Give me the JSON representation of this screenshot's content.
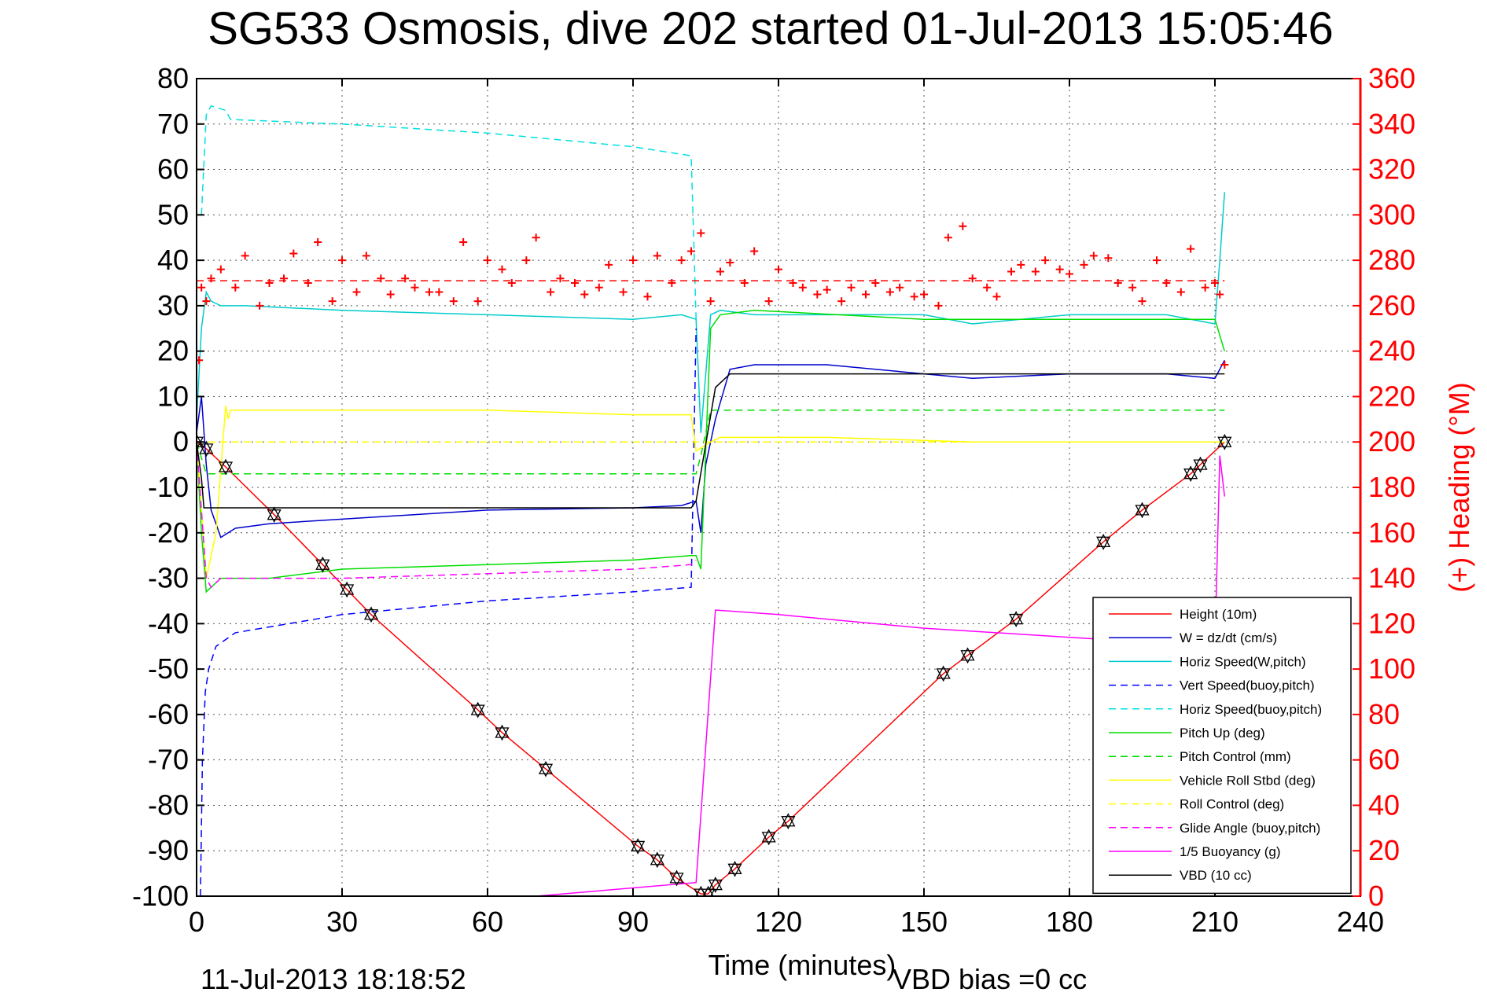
{
  "chart_data": {
    "type": "line",
    "title": "SG533 Osmosis, dive 202 started 01-Jul-2013 15:05:46",
    "xlabel": "Time (minutes)",
    "ylabel_right": "(+) Heading (°M)",
    "xlim": [
      0,
      240
    ],
    "ylim": [
      -100,
      80
    ],
    "ylim_right": [
      0,
      360
    ],
    "x_ticks": [
      "0",
      "30",
      "60",
      "90",
      "120",
      "150",
      "180",
      "210",
      "240"
    ],
    "y_ticks": [
      "80",
      "70",
      "60",
      "50",
      "40",
      "30",
      "20",
      "10",
      "0",
      "-10",
      "-20",
      "-30",
      "-40",
      "-50",
      "-60",
      "-70",
      "-80",
      "-90",
      "-100"
    ],
    "y_ticks_right": [
      "360",
      "340",
      "320",
      "300",
      "280",
      "260",
      "240",
      "220",
      "200",
      "180",
      "160",
      "140",
      "120",
      "100",
      "80",
      "60",
      "40",
      "20",
      "0"
    ],
    "grid": true,
    "legend_position": "bottom-right",
    "footer_left": "11-Jul-2013 18:18:52",
    "footer_right": "VBD bias =0 cc",
    "series": [
      {
        "name": "Height (10m)",
        "color": "#ff0000",
        "style": "solid",
        "axis": "left",
        "x": [
          0,
          2,
          6,
          16,
          26,
          31,
          36,
          58,
          63,
          72,
          91,
          95,
          99,
          104,
          105.5,
          107,
          111,
          118,
          122,
          154,
          159,
          169,
          187,
          195,
          205,
          207,
          212
        ],
        "y": [
          0,
          -1.5,
          -5.5,
          -16,
          -27,
          -32.5,
          -38,
          -59,
          -64,
          -72,
          -89,
          -92,
          -96,
          -99.5,
          -99.5,
          -97.5,
          -94,
          -87,
          -83.5,
          -51,
          -47,
          -39,
          -22,
          -15,
          -7,
          -5,
          0
        ]
      },
      {
        "name": "W = dz/dt (cm/s)",
        "color": "#0000cc",
        "style": "solid",
        "axis": "left",
        "x": [
          0,
          1,
          2,
          3,
          5,
          8,
          15,
          30,
          60,
          90,
          100,
          103,
          104,
          105,
          107,
          110,
          115,
          130,
          150,
          160,
          180,
          200,
          210,
          212
        ],
        "y": [
          2,
          10,
          -5,
          -15,
          -21,
          -19,
          -18,
          -17,
          -15,
          -14.5,
          -14,
          -13,
          -20,
          -5,
          5,
          16,
          17,
          17,
          15,
          14,
          15,
          15,
          14,
          18
        ]
      },
      {
        "name": "Horiz Speed(W,pitch)",
        "color": "#00cccc",
        "style": "solid",
        "axis": "left",
        "x": [
          0,
          1,
          2,
          3,
          5,
          10,
          30,
          60,
          90,
          100,
          103,
          104,
          106,
          108,
          115,
          130,
          150,
          160,
          180,
          200,
          210,
          211,
          212
        ],
        "y": [
          5,
          25,
          33,
          31,
          30,
          30,
          29,
          28,
          27,
          28,
          27,
          2,
          28,
          29,
          28,
          28,
          28,
          26,
          28,
          28,
          26,
          40,
          55
        ]
      },
      {
        "name": "Vert Speed(buoy,pitch)",
        "color": "#0000ff",
        "style": "dashed",
        "axis": "left",
        "x": [
          0.8,
          1.2,
          1.8,
          2.5,
          4,
          8,
          30,
          60,
          90,
          102,
          103
        ],
        "y": [
          -100,
          -70,
          -55,
          -50,
          -45,
          -42,
          -38,
          -35,
          -33,
          -32,
          25
        ]
      },
      {
        "name": "Horiz Speed(buoy,pitch)",
        "color": "#00e0e0",
        "style": "dashed",
        "axis": "left",
        "x": [
          1,
          2,
          3,
          6,
          7,
          30,
          60,
          90,
          102,
          103
        ],
        "y": [
          50,
          72,
          74,
          73,
          71,
          70,
          68,
          65,
          63,
          27
        ]
      },
      {
        "name": "Pitch Up (deg)",
        "color": "#00dd00",
        "style": "solid",
        "axis": "left",
        "x": [
          0,
          1,
          2,
          3,
          5,
          15,
          30,
          60,
          90,
          102,
          103,
          104,
          106,
          108,
          115,
          150,
          180,
          210,
          212
        ],
        "y": [
          0,
          -20,
          -33,
          -32,
          -30,
          -30,
          -28,
          -27,
          -26,
          -25,
          -25,
          -28,
          25,
          28,
          29,
          27,
          27,
          27,
          20
        ]
      },
      {
        "name": "Pitch Control (mm)",
        "color": "#00dd00",
        "style": "dashed",
        "axis": "left",
        "x": [
          0,
          2,
          3,
          103,
          104,
          106,
          212
        ],
        "y": [
          0,
          -7,
          -7,
          -7,
          -3,
          7,
          7
        ]
      },
      {
        "name": "Vehicle Roll Stbd (deg)",
        "color": "#ffff00",
        "style": "solid",
        "axis": "left",
        "x": [
          0,
          2,
          4,
          6,
          6.5,
          7,
          30,
          60,
          90,
          102,
          103,
          106,
          108,
          130,
          160,
          180,
          200,
          212
        ],
        "y": [
          0,
          -30,
          -20,
          8,
          5,
          7,
          7,
          7,
          6,
          6,
          -2,
          0,
          1,
          1,
          0,
          0,
          0,
          0
        ]
      },
      {
        "name": "Roll Control (deg)",
        "color": "#ffff00",
        "style": "dashed",
        "axis": "left",
        "x": [
          0,
          212
        ],
        "y": [
          0,
          0
        ]
      },
      {
        "name": "Glide Angle (buoy,pitch)",
        "color": "#ff00ff",
        "style": "dashed",
        "axis": "left",
        "x": [
          0,
          2,
          3,
          5,
          30,
          60,
          90,
          102,
          103
        ],
        "y": [
          0,
          -30,
          -32,
          -30,
          -30,
          -29,
          -28,
          -27,
          -26
        ]
      },
      {
        "name": "1/5 Buoyancy (g)",
        "color": "#ff00ff",
        "style": "solid",
        "axis": "left",
        "x": [
          70,
          103,
          107,
          120,
          150,
          180,
          210,
          211,
          212
        ],
        "y": [
          -100,
          -97,
          -37,
          -38,
          -41,
          -43,
          -45,
          -3,
          -12
        ]
      },
      {
        "name": "VBD (10 cc)",
        "color": "#000000",
        "style": "solid",
        "axis": "left",
        "x": [
          0,
          1,
          1.5,
          2,
          102,
          103,
          107,
          110,
          210,
          212
        ],
        "y": [
          0,
          -8,
          -14.5,
          -14.5,
          -14.5,
          -13,
          12,
          15,
          15,
          15
        ]
      },
      {
        "name": "",
        "color": "#ff0000",
        "style": "dashed",
        "axis": "right",
        "x": [
          0,
          212
        ],
        "y": [
          271,
          271
        ]
      },
      {
        "name": "",
        "color": "#ff0000",
        "style": "markers-plus",
        "axis": "right",
        "x": [
          0.5,
          1,
          2,
          3,
          5,
          8,
          10,
          13,
          15,
          18,
          20,
          23,
          25,
          28,
          30,
          33,
          35,
          38,
          40,
          43,
          45,
          48,
          50,
          53,
          55,
          58,
          60,
          63,
          65,
          68,
          70,
          73,
          75,
          78,
          80,
          83,
          85,
          88,
          90,
          93,
          95,
          98,
          100,
          102,
          104,
          106,
          108,
          110,
          113,
          115,
          118,
          120,
          123,
          125,
          128,
          130,
          133,
          135,
          138,
          140,
          143,
          145,
          148,
          150,
          153,
          155,
          158,
          160,
          163,
          165,
          168,
          170,
          173,
          175,
          178,
          180,
          183,
          185,
          188,
          190,
          193,
          195,
          198,
          200,
          203,
          205,
          208,
          210,
          211,
          212
        ],
        "y": [
          236,
          268,
          262,
          272,
          276,
          268,
          282,
          260,
          270,
          272,
          283,
          270,
          288,
          262,
          280,
          266,
          282,
          272,
          265,
          272,
          268,
          266,
          266,
          262,
          288,
          262,
          280,
          276,
          270,
          280,
          290,
          266,
          272,
          270,
          265,
          268,
          278,
          266,
          280,
          264,
          282,
          270,
          280,
          284,
          292,
          262,
          275,
          279,
          270,
          284,
          262,
          276,
          270,
          268,
          265,
          267,
          262,
          268,
          265,
          270,
          266,
          268,
          264,
          265,
          260,
          290,
          295,
          272,
          268,
          264,
          275,
          278,
          275,
          280,
          276,
          274,
          278,
          282,
          281,
          270,
          268,
          262,
          280,
          270,
          266,
          285,
          268,
          270,
          265,
          234
        ]
      }
    ],
    "markers_up": {
      "symbol": "triangle-up",
      "x": [
        0,
        2,
        6,
        16,
        26,
        31,
        36,
        58,
        63,
        72,
        91,
        95,
        99,
        104,
        105.5,
        107,
        111,
        118,
        122,
        154,
        159,
        169,
        187,
        195,
        205,
        207,
        212
      ],
      "y": [
        0,
        -1.5,
        -5.5,
        -16,
        -27,
        -32.5,
        -38,
        -59,
        -64,
        -72,
        -89,
        -92,
        -96,
        -99.5,
        -99.5,
        -97.5,
        -94,
        -87,
        -83.5,
        -51,
        -47,
        -39,
        -22,
        -15,
        -7,
        -5,
        0
      ]
    }
  }
}
